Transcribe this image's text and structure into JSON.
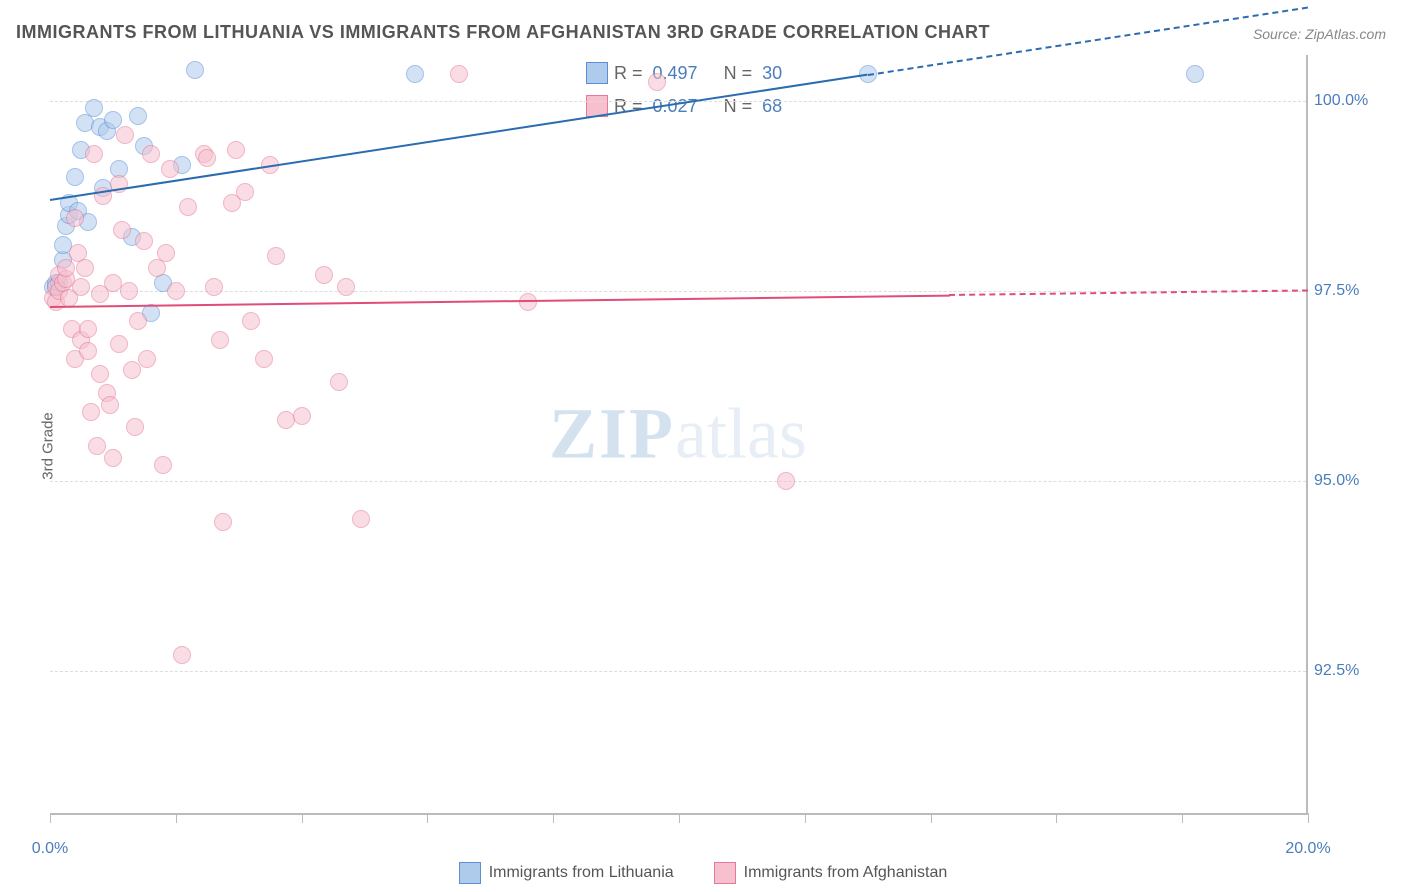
{
  "title": "IMMIGRANTS FROM LITHUANIA VS IMMIGRANTS FROM AFGHANISTAN 3RD GRADE CORRELATION CHART",
  "source_label": "Source: ",
  "source_value": "ZipAtlas.com",
  "ylabel": "3rd Grade",
  "watermark_a": "ZIP",
  "watermark_b": "atlas",
  "chart": {
    "type": "scatter",
    "background_color": "#ffffff",
    "grid_color": "#dddddd",
    "axis_color": "#bbbbbb",
    "tick_label_color": "#4a7ebb",
    "label_fontsize": 16,
    "xlim": [
      0,
      20
    ],
    "ylim": [
      90.6,
      100.6
    ],
    "xticks": [
      0,
      2,
      4,
      6,
      8,
      10,
      12,
      14,
      16,
      18,
      20
    ],
    "xtick_labels_shown": {
      "0": "0.0%",
      "20": "20.0%"
    },
    "yticks": [
      92.5,
      95.0,
      97.5,
      100.0
    ],
    "ytick_labels": [
      "92.5%",
      "95.0%",
      "97.5%",
      "100.0%"
    ],
    "marker_radius": 9,
    "marker_opacity": 0.55,
    "series": [
      {
        "name": "Immigrants from Lithuania",
        "fill_color": "#aecbec",
        "stroke_color": "#5a8fd6",
        "line_color": "#2b6cb0",
        "correlation_R": "0.497",
        "correlation_N": "30",
        "trend": {
          "x1": 0,
          "y1": 98.7,
          "x2": 13,
          "y2": 100.35,
          "extend_x": 20
        },
        "points": [
          [
            0.05,
            97.55
          ],
          [
            0.1,
            97.55
          ],
          [
            0.1,
            97.6
          ],
          [
            0.15,
            97.6
          ],
          [
            0.2,
            97.9
          ],
          [
            0.2,
            98.1
          ],
          [
            0.25,
            98.35
          ],
          [
            0.3,
            98.5
          ],
          [
            0.3,
            98.65
          ],
          [
            0.4,
            99.0
          ],
          [
            0.45,
            98.55
          ],
          [
            0.5,
            99.35
          ],
          [
            0.55,
            99.7
          ],
          [
            0.6,
            98.4
          ],
          [
            0.7,
            99.9
          ],
          [
            0.8,
            99.65
          ],
          [
            0.85,
            98.85
          ],
          [
            0.9,
            99.6
          ],
          [
            1.0,
            99.75
          ],
          [
            1.1,
            99.1
          ],
          [
            1.3,
            98.2
          ],
          [
            1.4,
            99.8
          ],
          [
            1.5,
            99.4
          ],
          [
            1.6,
            97.2
          ],
          [
            1.8,
            97.6
          ],
          [
            2.1,
            99.15
          ],
          [
            2.3,
            100.4
          ],
          [
            5.8,
            100.35
          ],
          [
            13.0,
            100.35
          ],
          [
            18.2,
            100.35
          ]
        ]
      },
      {
        "name": "Immigrants from Afghanistan",
        "fill_color": "#f7c0ce",
        "stroke_color": "#e47a98",
        "line_color": "#e04d77",
        "correlation_R": "0.027",
        "correlation_N": "68",
        "trend": {
          "x1": 0,
          "y1": 97.3,
          "x2": 14.3,
          "y2": 97.45,
          "extend_x": 20
        },
        "points": [
          [
            0.05,
            97.4
          ],
          [
            0.1,
            97.35
          ],
          [
            0.1,
            97.55
          ],
          [
            0.15,
            97.7
          ],
          [
            0.15,
            97.5
          ],
          [
            0.2,
            97.6
          ],
          [
            0.25,
            97.65
          ],
          [
            0.25,
            97.8
          ],
          [
            0.3,
            97.4
          ],
          [
            0.35,
            97.0
          ],
          [
            0.4,
            96.6
          ],
          [
            0.4,
            98.45
          ],
          [
            0.45,
            98.0
          ],
          [
            0.5,
            97.55
          ],
          [
            0.5,
            96.85
          ],
          [
            0.55,
            97.8
          ],
          [
            0.6,
            97.0
          ],
          [
            0.6,
            96.7
          ],
          [
            0.65,
            95.9
          ],
          [
            0.7,
            99.3
          ],
          [
            0.75,
            95.45
          ],
          [
            0.8,
            96.4
          ],
          [
            0.8,
            97.45
          ],
          [
            0.85,
            98.75
          ],
          [
            0.9,
            96.15
          ],
          [
            0.95,
            96.0
          ],
          [
            1.0,
            97.6
          ],
          [
            1.0,
            95.3
          ],
          [
            1.1,
            98.9
          ],
          [
            1.1,
            96.8
          ],
          [
            1.15,
            98.3
          ],
          [
            1.2,
            99.55
          ],
          [
            1.25,
            97.5
          ],
          [
            1.3,
            96.45
          ],
          [
            1.35,
            95.7
          ],
          [
            1.4,
            97.1
          ],
          [
            1.5,
            98.15
          ],
          [
            1.55,
            96.6
          ],
          [
            1.6,
            99.3
          ],
          [
            1.7,
            97.8
          ],
          [
            1.8,
            95.2
          ],
          [
            1.85,
            98.0
          ],
          [
            1.9,
            99.1
          ],
          [
            2.0,
            97.5
          ],
          [
            2.1,
            92.7
          ],
          [
            2.2,
            98.6
          ],
          [
            2.45,
            99.3
          ],
          [
            2.5,
            99.25
          ],
          [
            2.6,
            97.55
          ],
          [
            2.7,
            96.85
          ],
          [
            2.75,
            94.45
          ],
          [
            2.9,
            98.65
          ],
          [
            2.95,
            99.35
          ],
          [
            3.1,
            98.8
          ],
          [
            3.2,
            97.1
          ],
          [
            3.4,
            96.6
          ],
          [
            3.5,
            99.15
          ],
          [
            3.6,
            97.95
          ],
          [
            3.75,
            95.8
          ],
          [
            4.0,
            95.85
          ],
          [
            4.35,
            97.7
          ],
          [
            4.6,
            96.3
          ],
          [
            4.7,
            97.55
          ],
          [
            4.95,
            94.5
          ],
          [
            6.5,
            100.35
          ],
          [
            7.6,
            97.35
          ],
          [
            9.65,
            100.25
          ],
          [
            11.7,
            95.0
          ]
        ]
      }
    ]
  },
  "corr_legend": {
    "R_label": "R =",
    "N_label": "N ="
  }
}
